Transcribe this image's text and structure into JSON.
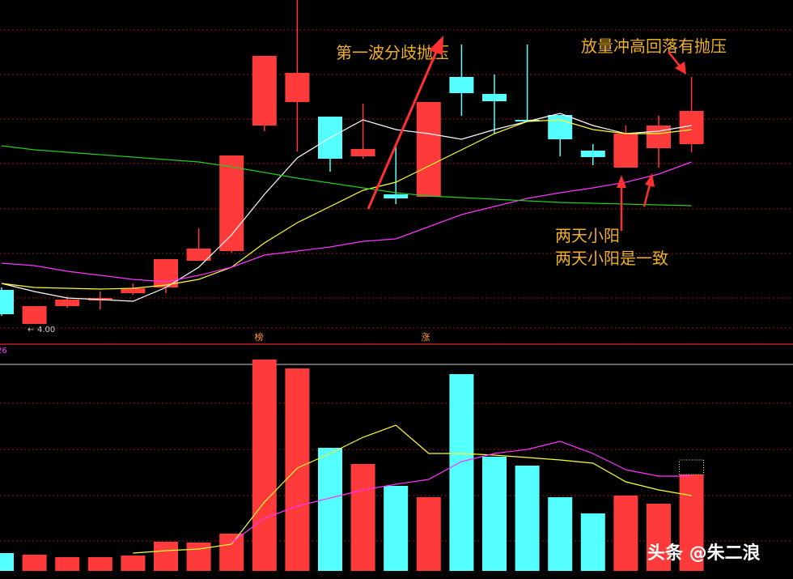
{
  "chart_data": {
    "type": "candlestick",
    "ylim": [
      3.75,
      8.0
    ],
    "up_color": "#ff3a3a",
    "down_color": "#54ffff",
    "open": [
      4.42,
      4.0,
      4.22,
      4.29,
      4.38,
      4.45,
      4.78,
      4.9,
      6.45,
      6.74,
      6.56,
      6.07,
      5.6,
      5.57,
      7.05,
      6.84,
      6.52,
      6.58,
      6.14,
      5.93,
      6.17,
      6.22
    ],
    "high": [
      4.45,
      4.22,
      4.34,
      4.4,
      4.5,
      4.8,
      5.18,
      6.08,
      7.31,
      8.0,
      6.56,
      6.72,
      6.2,
      6.74,
      7.45,
      7.08,
      7.45,
      6.58,
      6.22,
      6.45,
      6.57,
      7.05
    ],
    "low": [
      4.1,
      4.0,
      4.2,
      4.18,
      4.36,
      4.38,
      4.78,
      4.88,
      6.38,
      6.13,
      5.88,
      6.04,
      5.48,
      5.57,
      6.57,
      6.35,
      6.5,
      6.07,
      5.96,
      5.93,
      5.93,
      6.12
    ],
    "close": [
      4.12,
      4.22,
      4.3,
      4.32,
      4.44,
      4.8,
      4.93,
      6.08,
      7.31,
      7.1,
      6.04,
      6.16,
      5.55,
      6.74,
      6.85,
      6.75,
      6.5,
      6.28,
      6.06,
      6.35,
      6.45,
      6.63
    ],
    "ma_lines": [
      {
        "color": "#ffffff",
        "values": [
          4.5,
          4.4,
          4.32,
          4.3,
          4.28,
          4.45,
          4.7,
          5.1,
          5.6,
          6.05,
          6.3,
          6.52,
          6.4,
          6.35,
          6.28,
          6.4,
          6.5,
          6.6,
          6.45,
          6.35,
          6.38,
          6.45
        ]
      },
      {
        "color": "#ffff33",
        "values": [
          4.5,
          4.45,
          4.44,
          4.43,
          4.44,
          4.48,
          4.55,
          4.7,
          5.0,
          5.25,
          5.45,
          5.65,
          5.75,
          5.95,
          6.15,
          6.35,
          6.5,
          6.52,
          6.4,
          6.35,
          6.35,
          6.4
        ]
      },
      {
        "color": "#ff33ff",
        "values": [
          4.75,
          4.72,
          4.65,
          4.6,
          4.55,
          4.52,
          4.6,
          4.7,
          4.85,
          4.9,
          4.95,
          5.02,
          5.05,
          5.2,
          5.35,
          5.45,
          5.55,
          5.62,
          5.68,
          5.75,
          5.85,
          6.0
        ]
      },
      {
        "color": "#22cc22",
        "values": [
          6.2,
          6.15,
          6.12,
          6.09,
          6.06,
          6.03,
          6.0,
          5.94,
          5.87,
          5.8,
          5.74,
          5.68,
          5.62,
          5.58,
          5.56,
          5.54,
          5.52,
          5.5,
          5.49,
          5.48,
          5.47,
          5.46
        ]
      }
    ],
    "low_label": {
      "value": 4.0,
      "label": "4.00"
    },
    "annotations": [
      "第一波分歧抛压",
      "放量冲高回落有抛压",
      "两天小阳",
      "两天小阳是一致"
    ],
    "markers": [
      "榜",
      "涨"
    ],
    "volume": {
      "ylim": [
        0,
        27.5
      ],
      "yticks": [
        26
      ],
      "values": [
        2.2,
        2.0,
        1.7,
        1.7,
        1.9,
        3.6,
        3.5,
        4.6,
        26.1,
        25.0,
        15.2,
        13.2,
        10.5,
        9.1,
        24.3,
        14.1,
        13.0,
        9.1,
        7.1,
        9.3,
        8.3,
        11.9
      ],
      "ma_lines": [
        {
          "color": "#ffff33",
          "values": [
            null,
            null,
            null,
            null,
            2.2,
            2.5,
            2.7,
            3.3,
            8.5,
            12.7,
            14.5,
            16.5,
            18.0,
            14.5,
            14.5,
            14.3,
            14.0,
            13.7,
            13.3,
            11.0,
            10.0,
            9.3
          ]
        },
        {
          "color": "#ff33ff",
          "values": [
            null,
            null,
            null,
            null,
            null,
            null,
            null,
            3.5,
            6.5,
            8.0,
            9.0,
            10.0,
            10.7,
            11.3,
            13.5,
            14.5,
            15.0,
            16.0,
            14.5,
            12.5,
            11.7,
            11.7
          ]
        }
      ]
    },
    "watermark": "头条 @朱二浪"
  }
}
